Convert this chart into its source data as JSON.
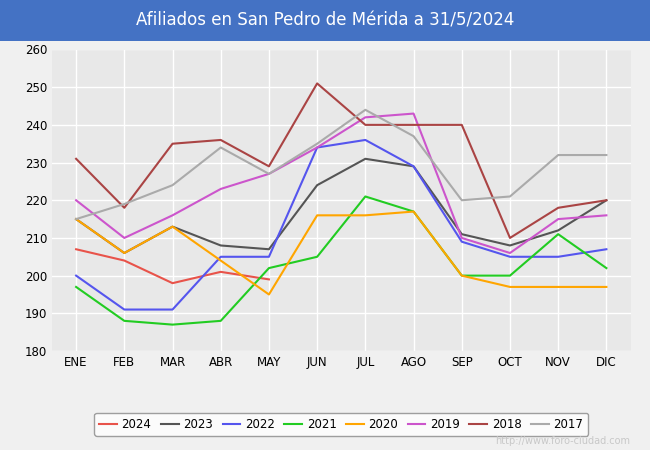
{
  "title": "Afiliados en San Pedro de Mérida a 31/5/2024",
  "title_color": "#ffffff",
  "title_bg": "#4472c4",
  "ylim": [
    180,
    260
  ],
  "yticks": [
    180,
    190,
    200,
    210,
    220,
    230,
    240,
    250,
    260
  ],
  "months": [
    "ENE",
    "FEB",
    "MAR",
    "ABR",
    "MAY",
    "JUN",
    "JUL",
    "AGO",
    "SEP",
    "OCT",
    "NOV",
    "DIC"
  ],
  "watermark": "http://www.foro-ciudad.com",
  "series": {
    "2024": {
      "color": "#e8534a",
      "data": [
        207,
        204,
        198,
        201,
        199,
        null,
        null,
        null,
        null,
        null,
        null,
        null
      ]
    },
    "2023": {
      "color": "#555555",
      "data": [
        215,
        206,
        213,
        208,
        207,
        224,
        231,
        229,
        211,
        208,
        212,
        220
      ]
    },
    "2022": {
      "color": "#5555ee",
      "data": [
        200,
        191,
        191,
        205,
        205,
        234,
        236,
        229,
        209,
        205,
        205,
        207
      ]
    },
    "2021": {
      "color": "#22cc22",
      "data": [
        197,
        188,
        187,
        188,
        202,
        205,
        221,
        217,
        200,
        200,
        211,
        202
      ]
    },
    "2020": {
      "color": "#ffa500",
      "data": [
        215,
        206,
        213,
        204,
        195,
        216,
        216,
        217,
        200,
        197,
        197,
        197
      ]
    },
    "2019": {
      "color": "#cc55cc",
      "data": [
        220,
        210,
        216,
        223,
        227,
        234,
        242,
        243,
        210,
        206,
        215,
        216
      ]
    },
    "2018": {
      "color": "#aa4444",
      "data": [
        231,
        218,
        235,
        236,
        229,
        251,
        240,
        240,
        240,
        210,
        218,
        220
      ]
    },
    "2017": {
      "color": "#aaaaaa",
      "data": [
        215,
        219,
        224,
        234,
        227,
        235,
        244,
        237,
        220,
        221,
        232,
        232
      ]
    }
  },
  "legend_order": [
    "2024",
    "2023",
    "2022",
    "2021",
    "2020",
    "2019",
    "2018",
    "2017"
  ],
  "background_color": "#f0f0f0",
  "plot_bg": "#e8e8e8",
  "grid_color": "#ffffff",
  "watermark_color": "#c8c8c8"
}
